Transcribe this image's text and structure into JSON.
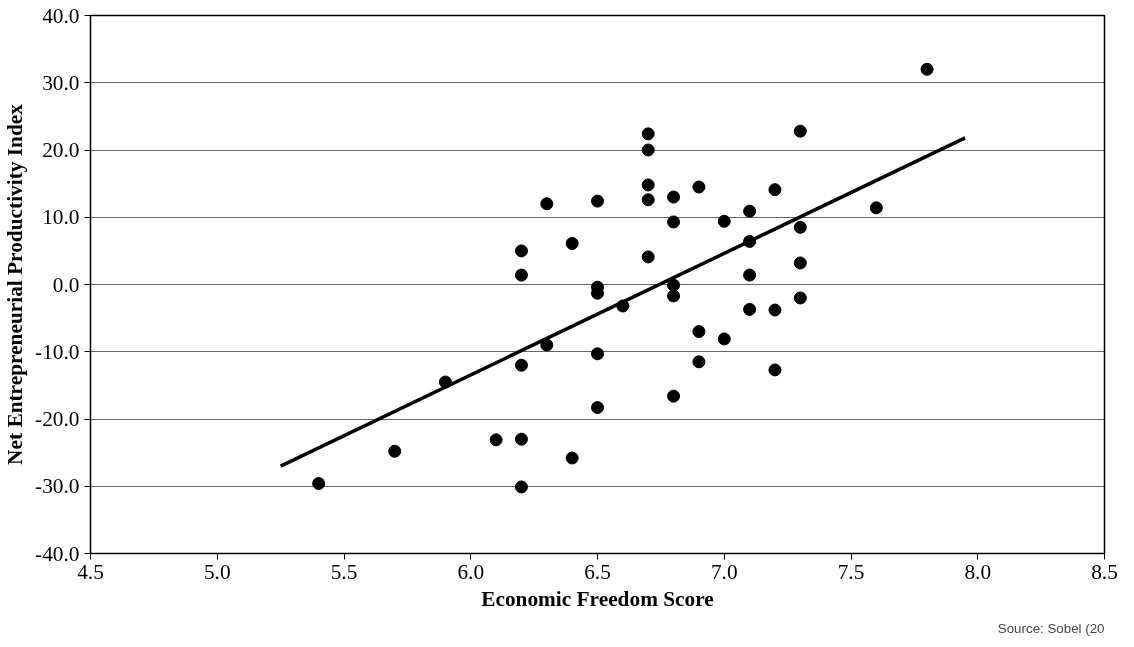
{
  "chart_data": {
    "type": "scatter",
    "xlabel": "Economic Freedom Score",
    "ylabel": "Net Entrepreneurial Productivity Index",
    "annotations": [
      "Source: Sobel (20"
    ],
    "xlim": [
      4.5,
      8.5
    ],
    "ylim": [
      -40,
      40
    ],
    "xticks": [
      4.5,
      {
        "value": 5,
        "label": "5.0"
      },
      5.5,
      {
        "value": 6,
        "label": "6.0"
      },
      6.5,
      {
        "value": 7,
        "label": "7.0"
      },
      7.5,
      {
        "value": 8,
        "label": "8.0"
      },
      8.5
    ],
    "yticks": [
      {
        "value": -40,
        "label": "-40.0"
      },
      {
        "value": -30,
        "label": "-30.0"
      },
      {
        "value": -20,
        "label": "-20.0"
      },
      {
        "value": -10,
        "label": "-10.0"
      },
      {
        "value": 0,
        "label": "0.0"
      },
      {
        "value": 10,
        "label": "10.0"
      },
      {
        "value": 20,
        "label": "20.0"
      },
      {
        "value": 30,
        "label": "30.0"
      },
      {
        "value": 40,
        "label": "40.0"
      }
    ],
    "grid": "y",
    "series": [
      {
        "marker": "circle",
        "color": "#000000",
        "x": [
          5.4,
          5.7,
          5.9,
          6.1,
          6.2,
          6.2,
          6.2,
          6.2,
          6.2,
          6.3,
          6.3,
          6.4,
          6.4,
          6.5,
          6.5,
          6.5,
          6.5,
          6.5,
          6.6,
          6.7,
          6.7,
          6.7,
          6.7,
          6.7,
          6.8,
          6.8,
          6.8,
          6.8,
          6.8,
          6.9,
          6.9,
          6.9,
          7.0,
          7.0,
          7.1,
          7.1,
          7.1,
          7.1,
          7.2,
          7.2,
          7.2,
          7.3,
          7.3,
          7.3,
          7.3,
          7.6,
          7.8
        ],
        "values": [
          -29.6,
          -24.8,
          -14.5,
          -23.1,
          -23.0,
          -30.1,
          -12.0,
          1.4,
          5.0,
          12.0,
          -9.0,
          6.1,
          -25.8,
          12.4,
          -0.4,
          -1.3,
          -10.3,
          -18.3,
          -3.2,
          22.4,
          20.0,
          14.8,
          12.6,
          4.1,
          13.0,
          9.3,
          -0.1,
          -1.7,
          -16.6,
          14.5,
          -7.0,
          -11.5,
          9.4,
          -8.1,
          10.9,
          6.4,
          1.4,
          -3.7,
          14.1,
          -3.8,
          -12.7,
          22.8,
          8.5,
          3.2,
          -2.0,
          11.4,
          32.0
        ]
      },
      {
        "type": "line",
        "color": "#000000",
        "line_style": "solid",
        "x": [
          5.25,
          7.95
        ],
        "values": [
          -27.0,
          21.8
        ]
      }
    ]
  }
}
